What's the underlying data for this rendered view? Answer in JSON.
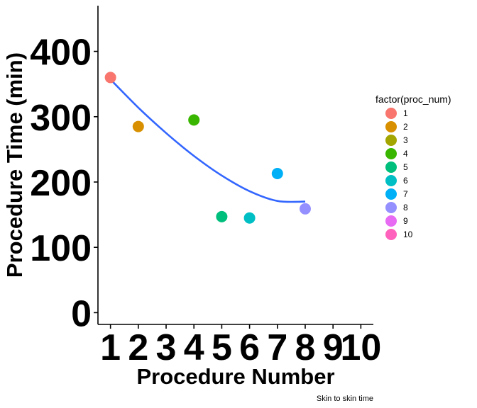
{
  "chart_data": {
    "type": "scatter",
    "title": "",
    "xlabel": "Procedure Number",
    "ylabel": "Procedure Time (min)",
    "caption": "Skin to skin time",
    "xlim": [
      0.55,
      10.45
    ],
    "ylim": [
      -18,
      470
    ],
    "x_ticks": [
      "1",
      "2",
      "3",
      "4",
      "5",
      "6",
      "7",
      "8",
      "9",
      "10"
    ],
    "y_ticks": [
      "0",
      "100",
      "200",
      "300",
      "400"
    ],
    "y_tick_values": [
      0,
      100,
      200,
      300,
      400
    ],
    "grid": false,
    "legend": {
      "title": "factor(proc_num)",
      "position": "right",
      "entries": [
        {
          "label": "1",
          "color": "#F8766D"
        },
        {
          "label": "2",
          "color": "#D89000"
        },
        {
          "label": "3",
          "color": "#A3A500"
        },
        {
          "label": "4",
          "color": "#39B600"
        },
        {
          "label": "5",
          "color": "#00BF7D"
        },
        {
          "label": "6",
          "color": "#00BFC4"
        },
        {
          "label": "7",
          "color": "#00B0F6"
        },
        {
          "label": "8",
          "color": "#9590FF"
        },
        {
          "label": "9",
          "color": "#E76BF3"
        },
        {
          "label": "10",
          "color": "#FF62BC"
        }
      ]
    },
    "points": [
      {
        "x": 1,
        "y": 360,
        "color": "#F8766D"
      },
      {
        "x": 2,
        "y": 285,
        "color": "#D89000"
      },
      {
        "x": 4,
        "y": 295,
        "color": "#39B600"
      },
      {
        "x": 5,
        "y": 147,
        "color": "#00BF7D"
      },
      {
        "x": 6,
        "y": 145,
        "color": "#00BFC4"
      },
      {
        "x": 7,
        "y": 213,
        "color": "#00B0F6"
      },
      {
        "x": 8,
        "y": 159,
        "color": "#9590FF"
      }
    ],
    "smooth": {
      "color": "#3366FF",
      "x": [
        1,
        2,
        3,
        4,
        5,
        6,
        7,
        8
      ],
      "y": [
        357,
        314,
        275,
        240,
        210,
        186,
        171,
        170
      ]
    }
  }
}
